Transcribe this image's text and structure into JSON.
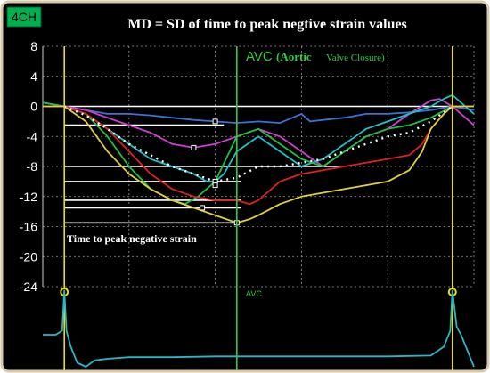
{
  "badge": "4CH",
  "title": "MD = SD of time to peak negtive strain values",
  "annotations": {
    "avc_label": "AVC",
    "avc_long_prefix": "(Aortic",
    "avc_long_rest": "Valve Closure)",
    "avc_bottom": "AVC",
    "ttp_label": "Time to peak negative strain"
  },
  "colors": {
    "background": "#000000",
    "grid": "#9a9a9a",
    "axis": "#cfcfcf",
    "title": "#ffffff",
    "badge_bg": "#00b050",
    "badge_text": "#000000",
    "avc_line": "#2ecc40",
    "marker_line": "#e8e000",
    "ecg": "#29b7c8",
    "ttp_lines": "#ffffff"
  },
  "chart_data": {
    "type": "line",
    "title": "MD = SD of time to peak negtive strain values",
    "xlabel": "",
    "ylabel": "",
    "ylim": [
      -24,
      8
    ],
    "xlim": [
      0,
      100
    ],
    "yticks": [
      8,
      4,
      0,
      -4,
      -8,
      -12,
      -16,
      -20,
      -24
    ],
    "grid": true,
    "avc_x": 45,
    "markers_x": [
      5,
      95
    ],
    "ttp_levels": [
      -2.5,
      -8,
      -10,
      -12.5,
      -13.5,
      -15.5
    ],
    "series": [
      {
        "color": "#3a72d8",
        "values": [
          [
            0,
            0
          ],
          [
            5,
            0
          ],
          [
            10,
            -0.5
          ],
          [
            15,
            -1
          ],
          [
            20,
            -1
          ],
          [
            25,
            -1.2
          ],
          [
            30,
            -1.5
          ],
          [
            35,
            -1.8
          ],
          [
            40,
            -2
          ],
          [
            45,
            -2.2
          ],
          [
            50,
            -2
          ],
          [
            55,
            -2.2
          ],
          [
            60,
            -1
          ],
          [
            62,
            -2
          ],
          [
            65,
            -1.8
          ],
          [
            70,
            -1.5
          ],
          [
            75,
            -1
          ],
          [
            80,
            -1
          ],
          [
            85,
            -0.8
          ],
          [
            90,
            -0.5
          ],
          [
            95,
            0
          ],
          [
            100,
            -0.5
          ]
        ]
      },
      {
        "color": "#d040d0",
        "values": [
          [
            0,
            0
          ],
          [
            5,
            0
          ],
          [
            10,
            -0.5
          ],
          [
            15,
            -1.5
          ],
          [
            20,
            -2.5
          ],
          [
            25,
            -3.5
          ],
          [
            30,
            -5
          ],
          [
            35,
            -5.5
          ],
          [
            40,
            -5
          ],
          [
            45,
            -4
          ],
          [
            50,
            -3
          ],
          [
            55,
            -4
          ],
          [
            60,
            -6
          ],
          [
            65,
            -8
          ],
          [
            70,
            -6
          ],
          [
            75,
            -4
          ],
          [
            80,
            -3
          ],
          [
            85,
            -1
          ],
          [
            90,
            0.8
          ],
          [
            92,
            1
          ],
          [
            95,
            0
          ],
          [
            100,
            -2.5
          ]
        ]
      },
      {
        "color": "#20c0c8",
        "values": [
          [
            0,
            0.5
          ],
          [
            5,
            0
          ],
          [
            10,
            -1
          ],
          [
            15,
            -3
          ],
          [
            20,
            -5
          ],
          [
            25,
            -7
          ],
          [
            30,
            -8
          ],
          [
            35,
            -9
          ],
          [
            38,
            -10
          ],
          [
            40,
            -10
          ],
          [
            42,
            -9
          ],
          [
            45,
            -6
          ],
          [
            50,
            -4
          ],
          [
            55,
            -6
          ],
          [
            60,
            -8
          ],
          [
            65,
            -7
          ],
          [
            70,
            -5
          ],
          [
            75,
            -3
          ],
          [
            80,
            -2
          ],
          [
            85,
            -1
          ],
          [
            90,
            0
          ],
          [
            93,
            1
          ],
          [
            95,
            1.5
          ],
          [
            98,
            0
          ],
          [
            100,
            -1
          ]
        ]
      },
      {
        "color": "#20c040",
        "values": [
          [
            0,
            0.5
          ],
          [
            5,
            0
          ],
          [
            10,
            -1
          ],
          [
            15,
            -4
          ],
          [
            20,
            -8
          ],
          [
            25,
            -11
          ],
          [
            30,
            -12.5
          ],
          [
            33,
            -13
          ],
          [
            36,
            -12
          ],
          [
            40,
            -10
          ],
          [
            45,
            -4
          ],
          [
            50,
            -3
          ],
          [
            55,
            -5
          ],
          [
            60,
            -7
          ],
          [
            65,
            -8
          ],
          [
            70,
            -6
          ],
          [
            75,
            -4
          ],
          [
            80,
            -3
          ],
          [
            85,
            -2.5
          ],
          [
            90,
            -1.5
          ],
          [
            95,
            0
          ],
          [
            100,
            0
          ]
        ]
      },
      {
        "color": "#e02020",
        "values": [
          [
            0,
            0
          ],
          [
            5,
            0
          ],
          [
            10,
            -1
          ],
          [
            15,
            -3
          ],
          [
            20,
            -6
          ],
          [
            25,
            -9
          ],
          [
            30,
            -11
          ],
          [
            35,
            -12
          ],
          [
            40,
            -12.5
          ],
          [
            45,
            -12.5
          ],
          [
            48,
            -13
          ],
          [
            50,
            -12.5
          ],
          [
            55,
            -10
          ],
          [
            60,
            -9
          ],
          [
            65,
            -8.5
          ],
          [
            70,
            -8
          ],
          [
            75,
            -7.5
          ],
          [
            80,
            -7
          ],
          [
            85,
            -6.5
          ],
          [
            88,
            -5
          ],
          [
            90,
            -3
          ],
          [
            93,
            -1
          ],
          [
            95,
            0
          ],
          [
            100,
            0
          ]
        ]
      },
      {
        "color": "#e0d040",
        "values": [
          [
            0,
            0
          ],
          [
            5,
            0
          ],
          [
            10,
            -2
          ],
          [
            15,
            -6
          ],
          [
            20,
            -9
          ],
          [
            25,
            -11
          ],
          [
            30,
            -12.5
          ],
          [
            35,
            -13.5
          ],
          [
            40,
            -14.5
          ],
          [
            45,
            -15.5
          ],
          [
            48,
            -15
          ],
          [
            50,
            -14.5
          ],
          [
            55,
            -13
          ],
          [
            60,
            -12
          ],
          [
            65,
            -11.5
          ],
          [
            70,
            -11
          ],
          [
            75,
            -10.5
          ],
          [
            80,
            -10
          ],
          [
            85,
            -8.5
          ],
          [
            88,
            -6
          ],
          [
            90,
            -3
          ],
          [
            93,
            -1
          ],
          [
            95,
            0
          ],
          [
            100,
            0
          ]
        ]
      },
      {
        "color": "#ffffff",
        "dashed": true,
        "values": [
          [
            5,
            0
          ],
          [
            10,
            -1.2
          ],
          [
            15,
            -3
          ],
          [
            20,
            -5
          ],
          [
            25,
            -6.5
          ],
          [
            30,
            -8
          ],
          [
            35,
            -9
          ],
          [
            40,
            -10
          ],
          [
            45,
            -9.5
          ],
          [
            50,
            -8
          ],
          [
            55,
            -8
          ],
          [
            60,
            -7.5
          ],
          [
            65,
            -7
          ],
          [
            70,
            -6
          ],
          [
            75,
            -5
          ],
          [
            80,
            -4
          ],
          [
            85,
            -3.5
          ],
          [
            90,
            -2
          ],
          [
            95,
            0
          ]
        ]
      }
    ],
    "peak_markers": [
      [
        40,
        -2
      ],
      [
        35,
        -5.5
      ],
      [
        40,
        -10
      ],
      [
        40,
        -10.5
      ],
      [
        37,
        -13.5
      ],
      [
        45,
        -15.5
      ]
    ],
    "ecg_trace": [
      [
        0,
        0.6
      ],
      [
        3,
        0.6
      ],
      [
        4.5,
        0.55
      ],
      [
        5,
        0.05
      ],
      [
        5.5,
        0.55
      ],
      [
        6.5,
        0.75
      ],
      [
        8,
        0.95
      ],
      [
        10,
        1
      ],
      [
        12,
        0.92
      ],
      [
        15,
        0.9
      ],
      [
        20,
        0.88
      ],
      [
        30,
        0.88
      ],
      [
        40,
        0.87
      ],
      [
        50,
        0.87
      ],
      [
        60,
        0.87
      ],
      [
        70,
        0.87
      ],
      [
        80,
        0.87
      ],
      [
        90,
        0.86
      ],
      [
        93,
        0.75
      ],
      [
        94.5,
        0.55
      ],
      [
        95,
        0.05
      ],
      [
        96,
        0.5
      ],
      [
        97,
        0.6
      ],
      [
        100,
        1
      ]
    ]
  }
}
